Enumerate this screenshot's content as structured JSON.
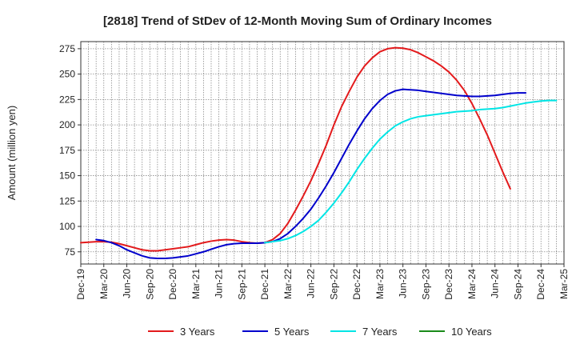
{
  "chart_data": {
    "type": "line",
    "title": "[2818]  Trend of StDev of 12-Month Moving Sum of Ordinary Incomes",
    "xlabel": "",
    "ylabel": "Amount (million yen)",
    "ylim": [
      63,
      282
    ],
    "yticks": [
      75,
      100,
      125,
      150,
      175,
      200,
      225,
      250,
      275
    ],
    "xticks": [
      "Dec-19",
      "Mar-20",
      "Jun-20",
      "Sep-20",
      "Dec-20",
      "Mar-21",
      "Jun-21",
      "Sep-21",
      "Dec-21",
      "Mar-22",
      "Jun-22",
      "Sep-22",
      "Dec-22",
      "Mar-23",
      "Jun-23",
      "Sep-23",
      "Dec-23",
      "Mar-24",
      "Jun-24",
      "Sep-24",
      "Dec-24",
      "Mar-25"
    ],
    "grid": true,
    "legend_position": "bottom",
    "series": [
      {
        "name": "3 Years",
        "color": "#e31a1c",
        "start_index": 0,
        "values": [
          84,
          84.5,
          85,
          85,
          84.5,
          83,
          81,
          79,
          77,
          76,
          76,
          77,
          78,
          79,
          80,
          82,
          84,
          85.5,
          86.5,
          87,
          86.5,
          85,
          84,
          83.5,
          84,
          87,
          93,
          103,
          116,
          130,
          145,
          162,
          180,
          200,
          218,
          233,
          247,
          258,
          266,
          272,
          275,
          276,
          275.5,
          274,
          271,
          267,
          263,
          258,
          252,
          244,
          234,
          221,
          206,
          190,
          172,
          154,
          137
        ]
      },
      {
        "name": "5 Years",
        "color": "#0000cc",
        "start_index": 2,
        "values": [
          87,
          86,
          84,
          81,
          77,
          74,
          71,
          69,
          68.5,
          68.5,
          69,
          70,
          71,
          73,
          75,
          77.5,
          80,
          82,
          83,
          83.5,
          83.5,
          83.5,
          84,
          85,
          88,
          93,
          100,
          108,
          117,
          128,
          140,
          153,
          167,
          181,
          194,
          206,
          216,
          224,
          230,
          233.5,
          235,
          234.5,
          234,
          233,
          232,
          231,
          230,
          229,
          228.5,
          228,
          228,
          228.5,
          229,
          230,
          231,
          231.5,
          231.5
        ]
      },
      {
        "name": "7 Years",
        "color": "#00e5e5",
        "start_index": 24,
        "values": [
          84,
          85,
          86,
          88,
          91,
          95,
          100,
          106,
          114,
          123,
          133,
          144,
          156,
          167,
          177,
          186,
          193,
          199,
          203,
          206,
          208,
          209,
          210,
          211,
          212,
          213,
          213.5,
          214,
          215,
          215.5,
          216,
          217,
          218.5,
          220,
          221.5,
          222.5,
          223.5,
          224,
          224
        ]
      },
      {
        "name": "10 Years",
        "color": "#1a8a1a",
        "start_index": 0,
        "values": []
      }
    ]
  }
}
